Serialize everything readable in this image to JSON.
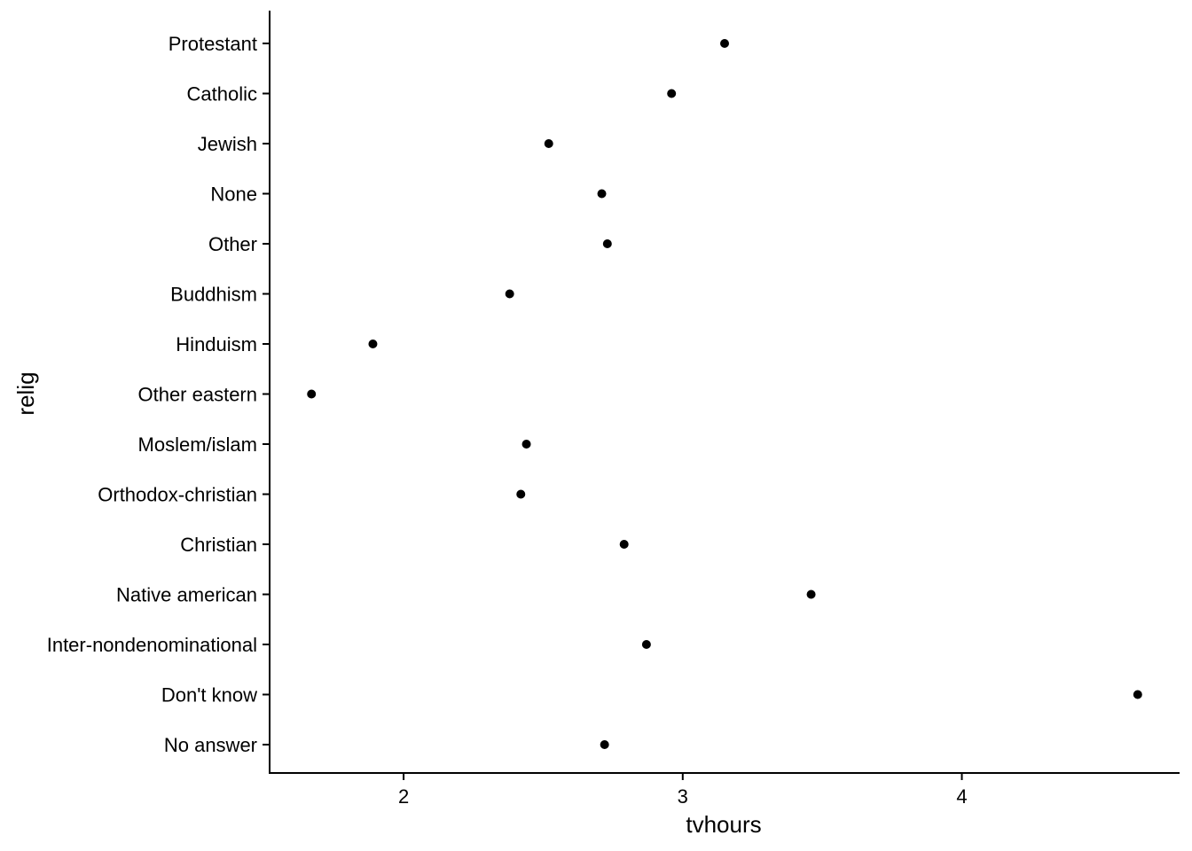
{
  "chart_data": {
    "type": "scatter",
    "xlabel": "tvhours",
    "ylabel": "relig",
    "xlim": [
      1.52,
      4.78
    ],
    "xticks": [
      2,
      3,
      4
    ],
    "grid": false,
    "legend": "none",
    "point_color": "#000000",
    "categories": [
      "Protestant",
      "Catholic",
      "Jewish",
      "None",
      "Other",
      "Buddhism",
      "Hinduism",
      "Other eastern",
      "Moslem/islam",
      "Orthodox-christian",
      "Christian",
      "Native american",
      "Inter-nondenominational",
      "Don't know",
      "No answer"
    ],
    "values": [
      3.15,
      2.96,
      2.52,
      2.71,
      2.73,
      2.38,
      1.89,
      1.67,
      2.44,
      2.42,
      2.79,
      3.46,
      2.87,
      4.63,
      2.72
    ]
  }
}
